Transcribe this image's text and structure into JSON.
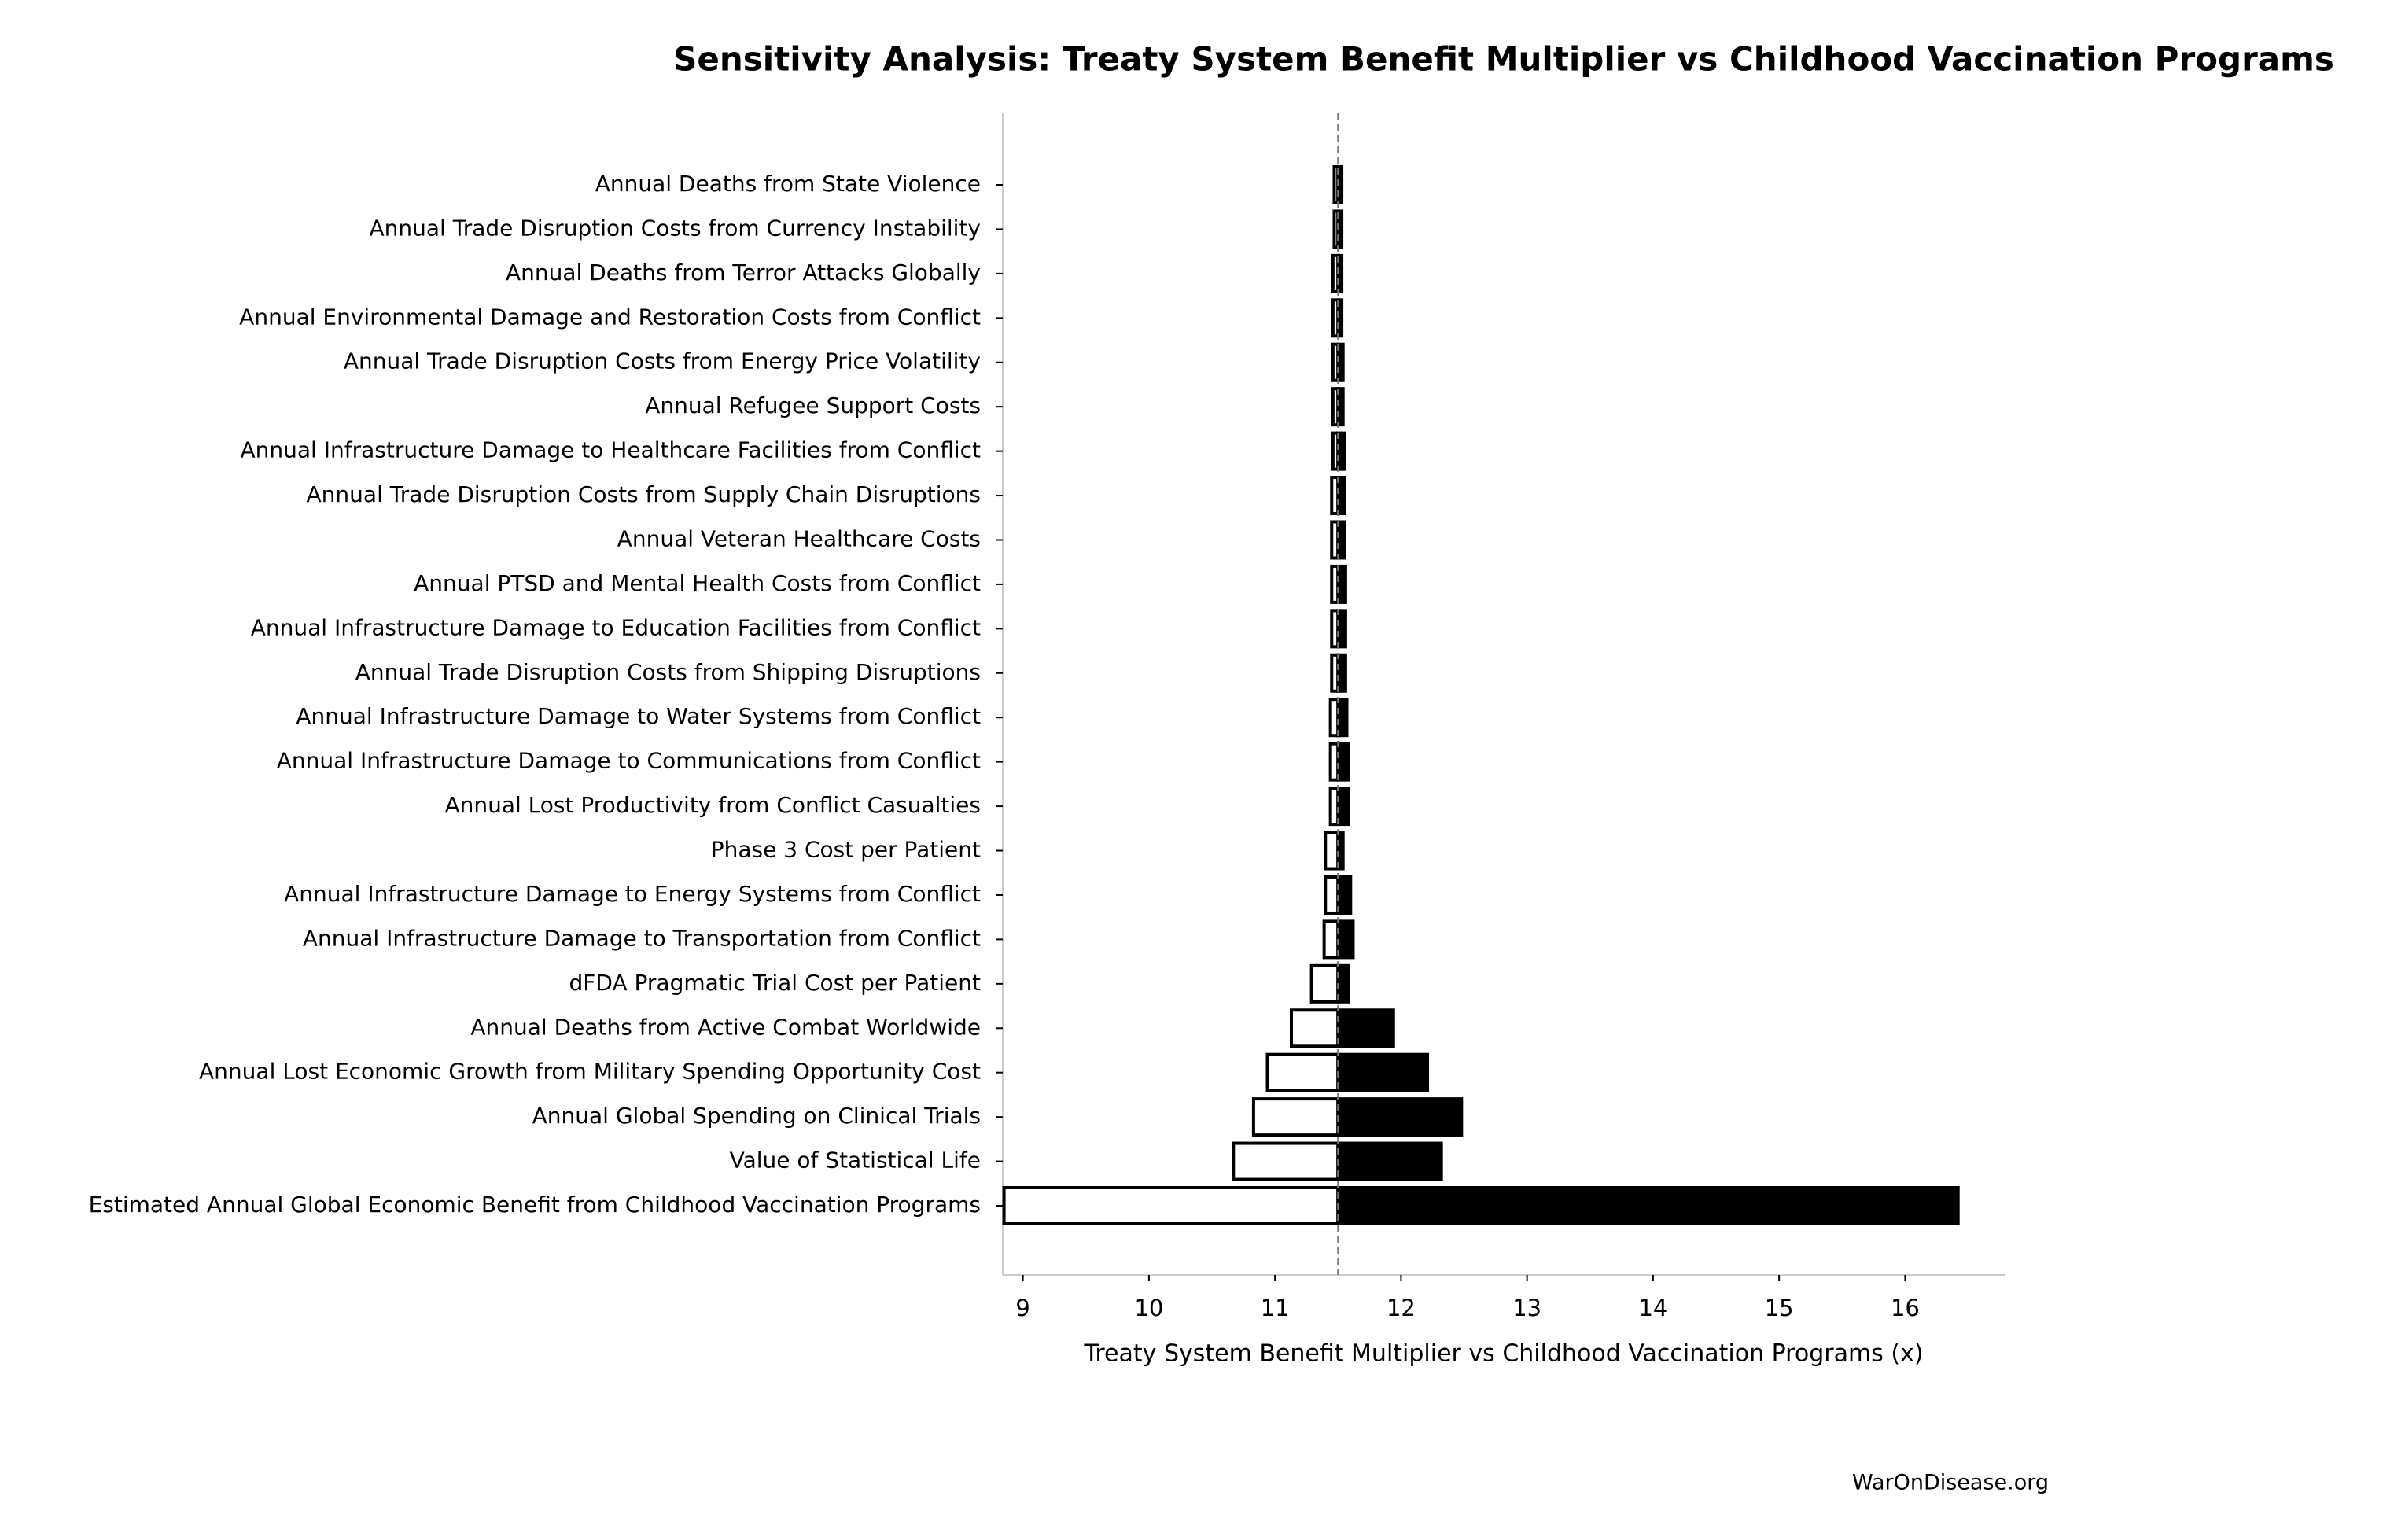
{
  "chart_data": {
    "type": "tornado",
    "title": "Sensitivity Analysis: Treaty System Benefit Multiplier vs Childhood Vaccination Programs",
    "xlabel": "Treaty System Benefit Multiplier vs Childhood Vaccination Programs (x)",
    "footer": "WarOnDisease.org",
    "categories": [
      "Annual Deaths from State Violence",
      "Annual Trade Disruption Costs from Currency Instability",
      "Annual Deaths from Terror Attacks Globally",
      "Annual Environmental Damage and Restoration Costs from Conflict",
      "Annual Trade Disruption Costs from Energy Price Volatility",
      "Annual Refugee Support Costs",
      "Annual Infrastructure Damage to Healthcare Facilities from Conflict",
      "Annual Trade Disruption Costs from Supply Chain Disruptions",
      "Annual Veteran Healthcare Costs",
      "Annual PTSD and Mental Health Costs from Conflict",
      "Annual Infrastructure Damage to Education Facilities from Conflict",
      "Annual Trade Disruption Costs from Shipping Disruptions",
      "Annual Infrastructure Damage to Water Systems from Conflict",
      "Annual Infrastructure Damage to Communications from Conflict",
      "Annual Lost Productivity from Conflict Casualties",
      "Phase 3 Cost per Patient",
      "Annual Infrastructure Damage to Energy Systems from Conflict",
      "Annual Infrastructure Damage to Transportation from Conflict",
      "dFDA Pragmatic Trial Cost per Patient",
      "Annual Deaths from Active Combat Worldwide",
      "Annual Lost Economic Growth from Military Spending Opportunity Cost",
      "Annual Global Spending on Clinical Trials",
      "Value of Statistical Life",
      "Estimated Annual Global Economic Benefit from Childhood Vaccination Programs"
    ],
    "baseline": 11.5,
    "low_values": [
      11.47,
      11.47,
      11.46,
      11.46,
      11.46,
      11.46,
      11.46,
      11.45,
      11.45,
      11.45,
      11.45,
      11.45,
      11.44,
      11.44,
      11.44,
      11.4,
      11.4,
      11.39,
      11.29,
      11.13,
      10.94,
      10.83,
      10.67,
      8.85
    ],
    "high_values": [
      11.53,
      11.53,
      11.53,
      11.53,
      11.54,
      11.54,
      11.55,
      11.55,
      11.55,
      11.56,
      11.56,
      11.56,
      11.57,
      11.58,
      11.58,
      11.54,
      11.6,
      11.62,
      11.58,
      11.94,
      12.21,
      12.48,
      12.32,
      16.42
    ],
    "low_color": "#ffffff",
    "high_color": "#000000",
    "edge_color": "#000000",
    "xlim": [
      8.84,
      16.79
    ],
    "xticks": [
      9,
      10,
      11,
      12,
      13,
      14,
      15,
      16
    ]
  }
}
